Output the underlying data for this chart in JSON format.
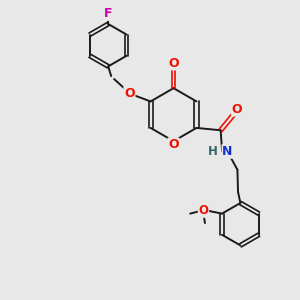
{
  "bg_color": "#e8e8e8",
  "bond_color": "#1a1a1a",
  "O_color": "#ee1100",
  "N_color": "#1133cc",
  "F_color": "#cc00aa",
  "H_color": "#336666",
  "figsize": [
    3.0,
    3.0
  ],
  "dpi": 100,
  "xlim": [
    0,
    10
  ],
  "ylim": [
    0,
    10
  ]
}
